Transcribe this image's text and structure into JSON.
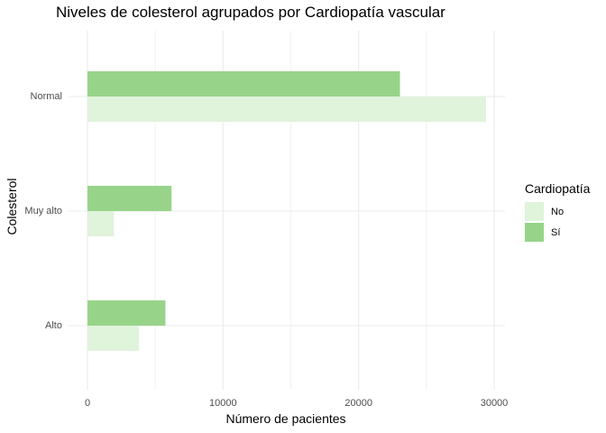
{
  "chart_data": {
    "type": "bar",
    "orientation": "horizontal",
    "title": "Niveles de colesterol agrupados por Cardiopatía vascular",
    "xlabel": "Número de pacientes",
    "ylabel": "Colesterol",
    "categories": [
      "Normal",
      "Muy alto",
      "Alto"
    ],
    "xlim": [
      0,
      30000
    ],
    "xticks": [
      "0",
      "10000",
      "20000",
      "30000"
    ],
    "grid": true,
    "legend_title": "Cardiopatía",
    "legend_position": "right",
    "series": [
      {
        "name": "No",
        "color": "#e0f3db",
        "values": [
          29400,
          1950,
          3800
        ]
      },
      {
        "name": "Sí",
        "color": "#97d489",
        "values": [
          23050,
          6200,
          5750
        ]
      }
    ]
  }
}
